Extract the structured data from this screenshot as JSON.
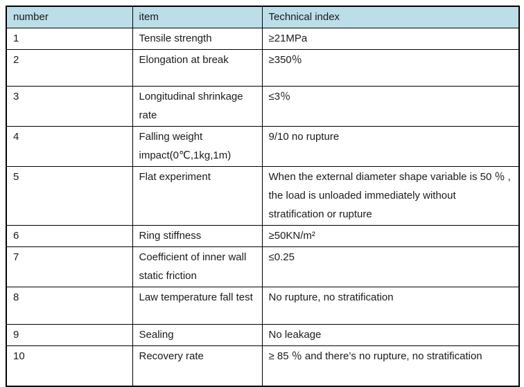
{
  "document": {
    "background_color": "#ffffff",
    "border_color": "#000000",
    "table": {
      "header": {
        "bg_color": "#bcdee8",
        "columns": [
          "number",
          "item",
          "Technical index"
        ]
      },
      "rows": [
        {
          "number": "1",
          "item": "Tensile strength",
          "index": "≥21MPa"
        },
        {
          "number": "2",
          "item": "Elongation at break",
          "index": "≥350％"
        },
        {
          "number": "3",
          "item": "Longitudinal shrinkage rate",
          "index": "≤3％"
        },
        {
          "number": "4",
          "item": "Falling weight impact(0℃,1kg,1m)",
          "index": "9/10 no rupture"
        },
        {
          "number": "5",
          "item": "Flat experiment",
          "index": "When the external diameter shape variable is 50 ％ , the load is unloaded immediately without stratification or rupture"
        },
        {
          "number": "6",
          "item": "Ring stiffness",
          "index": "≥50KN/m²"
        },
        {
          "number": "7",
          "item": "Coefficient of inner wall static friction",
          "index": "≤0.25"
        },
        {
          "number": "8",
          "item": "Law temperature fall test",
          "index": "No rupture, no stratification"
        },
        {
          "number": "9",
          "item": "Sealing",
          "index": "No leakage"
        },
        {
          "number": "10",
          "item": "Recovery rate",
          "index": "≥ 85 ％ and there’s no rupture, no stratification"
        }
      ]
    }
  }
}
